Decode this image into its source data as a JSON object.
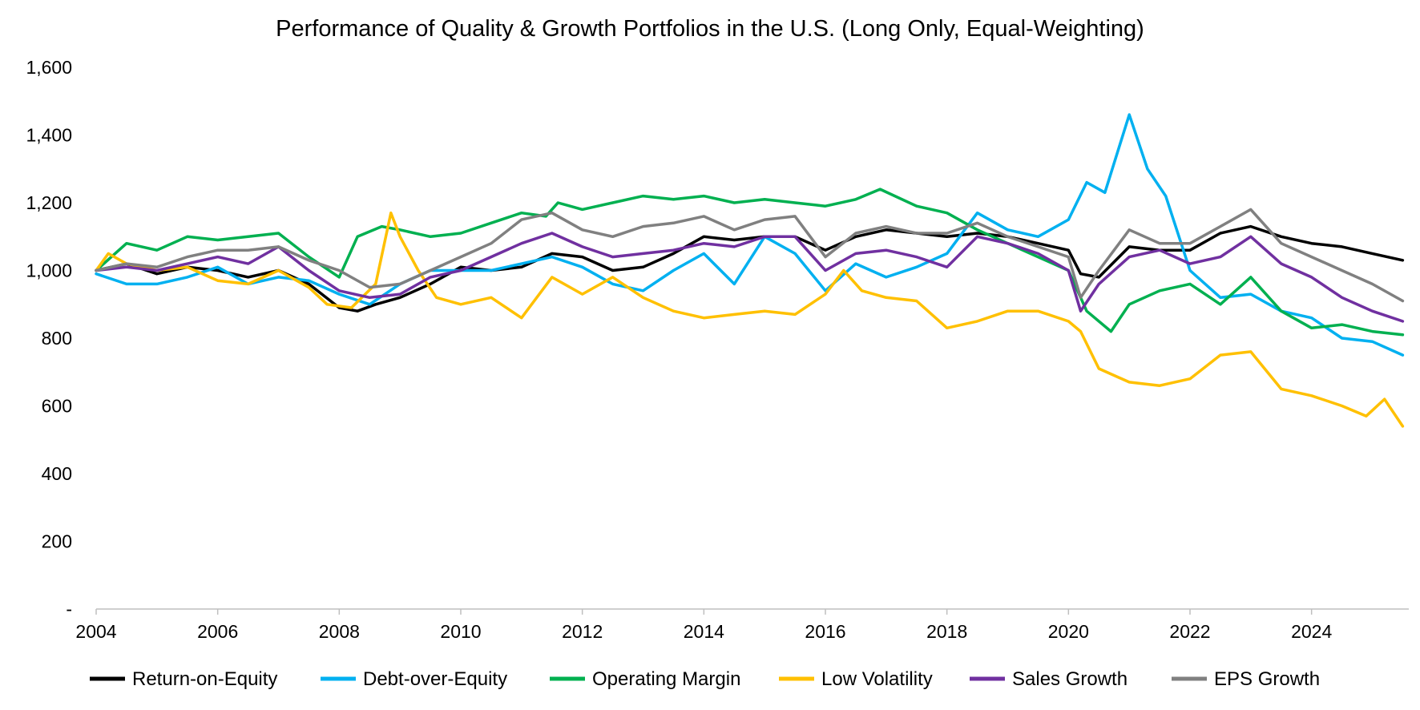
{
  "chart_data": {
    "type": "line",
    "title": "Performance of Quality & Growth Portfolios in the U.S. (Long Only, Equal-Weighting)",
    "xlabel": "",
    "ylabel": "",
    "xlim": [
      2004,
      2025.6
    ],
    "ylim": [
      0,
      1600
    ],
    "x_ticks": [
      2004,
      2006,
      2008,
      2010,
      2012,
      2014,
      2016,
      2018,
      2020,
      2022,
      2024
    ],
    "x_tick_labels": [
      "2004",
      "2006",
      "2008",
      "2010",
      "2012",
      "2014",
      "2016",
      "2018",
      "2020",
      "2022",
      "2024"
    ],
    "y_ticks": [
      0,
      200,
      400,
      600,
      800,
      1000,
      1200,
      1400,
      1600
    ],
    "y_tick_labels": [
      "-",
      "200",
      "400",
      "600",
      "800",
      "1,000",
      "1,200",
      "1,400",
      "1,600"
    ],
    "grid": false,
    "legend_position": "bottom",
    "series": [
      {
        "name": "Return-on-Equity",
        "color": "#000000",
        "x": [
          2004.0,
          2004.5,
          2005.0,
          2005.5,
          2006.0,
          2006.5,
          2007.0,
          2007.5,
          2008.0,
          2008.3,
          2008.6,
          2009.0,
          2009.5,
          2010.0,
          2010.5,
          2011.0,
          2011.5,
          2012.0,
          2012.5,
          2013.0,
          2013.5,
          2014.0,
          2014.5,
          2015.0,
          2015.5,
          2016.0,
          2016.5,
          2017.0,
          2017.5,
          2018.0,
          2018.5,
          2019.0,
          2019.5,
          2020.0,
          2020.2,
          2020.5,
          2021.0,
          2021.5,
          2022.0,
          2022.5,
          2023.0,
          2023.5,
          2024.0,
          2024.5,
          2025.0,
          2025.5
        ],
        "values": [
          1000,
          1020,
          990,
          1010,
          1000,
          980,
          1000,
          960,
          890,
          880,
          900,
          920,
          960,
          1010,
          1000,
          1010,
          1050,
          1040,
          1000,
          1010,
          1050,
          1100,
          1090,
          1100,
          1100,
          1060,
          1100,
          1120,
          1110,
          1100,
          1110,
          1100,
          1080,
          1060,
          990,
          980,
          1070,
          1060,
          1060,
          1110,
          1130,
          1100,
          1080,
          1070,
          1050,
          1030
        ]
      },
      {
        "name": "Debt-over-Equity",
        "color": "#00B0F0",
        "x": [
          2004.0,
          2004.5,
          2005.0,
          2005.5,
          2006.0,
          2006.5,
          2007.0,
          2007.5,
          2008.0,
          2008.5,
          2009.0,
          2009.5,
          2010.0,
          2010.5,
          2011.0,
          2011.5,
          2012.0,
          2012.5,
          2013.0,
          2013.5,
          2014.0,
          2014.5,
          2015.0,
          2015.5,
          2016.0,
          2016.5,
          2017.0,
          2017.5,
          2018.0,
          2018.5,
          2019.0,
          2019.5,
          2020.0,
          2020.3,
          2020.6,
          2021.0,
          2021.3,
          2021.6,
          2022.0,
          2022.5,
          2023.0,
          2023.5,
          2024.0,
          2024.5,
          2025.0,
          2025.5
        ],
        "values": [
          990,
          960,
          960,
          980,
          1010,
          960,
          980,
          970,
          930,
          900,
          960,
          1000,
          1000,
          1000,
          1020,
          1040,
          1010,
          960,
          940,
          1000,
          1050,
          960,
          1100,
          1050,
          940,
          1020,
          980,
          1010,
          1050,
          1170,
          1120,
          1100,
          1150,
          1260,
          1230,
          1460,
          1300,
          1220,
          1000,
          920,
          930,
          880,
          860,
          800,
          790,
          750
        ]
      },
      {
        "name": "Operating Margin",
        "color": "#00B050",
        "x": [
          2004.0,
          2004.5,
          2005.0,
          2005.5,
          2006.0,
          2006.5,
          2007.0,
          2007.5,
          2008.0,
          2008.3,
          2008.7,
          2009.0,
          2009.5,
          2010.0,
          2010.5,
          2011.0,
          2011.4,
          2011.6,
          2012.0,
          2012.5,
          2013.0,
          2013.5,
          2014.0,
          2014.5,
          2015.0,
          2015.5,
          2016.0,
          2016.5,
          2016.9,
          2017.5,
          2018.0,
          2018.5,
          2019.0,
          2019.5,
          2020.0,
          2020.3,
          2020.7,
          2021.0,
          2021.5,
          2022.0,
          2022.5,
          2023.0,
          2023.5,
          2024.0,
          2024.5,
          2025.0,
          2025.5
        ],
        "values": [
          1000,
          1080,
          1060,
          1100,
          1090,
          1100,
          1110,
          1040,
          980,
          1100,
          1130,
          1120,
          1100,
          1110,
          1140,
          1170,
          1160,
          1200,
          1180,
          1200,
          1220,
          1210,
          1220,
          1200,
          1210,
          1200,
          1190,
          1210,
          1240,
          1190,
          1170,
          1120,
          1080,
          1040,
          1000,
          880,
          820,
          900,
          940,
          960,
          900,
          980,
          880,
          830,
          840,
          820,
          810
        ]
      },
      {
        "name": "Low Volatility",
        "color": "#FFC000",
        "x": [
          2004.0,
          2004.2,
          2004.5,
          2005.0,
          2005.5,
          2006.0,
          2006.5,
          2007.0,
          2007.5,
          2007.8,
          2008.2,
          2008.6,
          2008.85,
          2009.0,
          2009.3,
          2009.6,
          2010.0,
          2010.5,
          2011.0,
          2011.5,
          2012.0,
          2012.5,
          2013.0,
          2013.5,
          2014.0,
          2014.5,
          2015.0,
          2015.5,
          2016.0,
          2016.3,
          2016.6,
          2017.0,
          2017.5,
          2018.0,
          2018.5,
          2019.0,
          2019.5,
          2020.0,
          2020.2,
          2020.5,
          2021.0,
          2021.5,
          2022.0,
          2022.5,
          2023.0,
          2023.5,
          2024.0,
          2024.5,
          2024.9,
          2025.2,
          2025.5
        ],
        "values": [
          1000,
          1050,
          1020,
          1000,
          1010,
          970,
          960,
          1000,
          950,
          900,
          890,
          960,
          1170,
          1100,
          1000,
          920,
          900,
          920,
          860,
          980,
          930,
          980,
          920,
          880,
          860,
          870,
          880,
          870,
          930,
          1000,
          940,
          920,
          910,
          830,
          850,
          880,
          880,
          850,
          820,
          710,
          670,
          660,
          680,
          750,
          760,
          650,
          630,
          600,
          570,
          620,
          540
        ]
      },
      {
        "name": "Sales Growth",
        "color": "#7030A0",
        "x": [
          2004.0,
          2004.5,
          2005.0,
          2005.5,
          2006.0,
          2006.5,
          2007.0,
          2007.5,
          2008.0,
          2008.5,
          2009.0,
          2009.5,
          2010.0,
          2010.5,
          2011.0,
          2011.5,
          2012.0,
          2012.5,
          2013.0,
          2013.5,
          2014.0,
          2014.5,
          2015.0,
          2015.5,
          2016.0,
          2016.5,
          2017.0,
          2017.5,
          2018.0,
          2018.5,
          2019.0,
          2019.5,
          2020.0,
          2020.2,
          2020.5,
          2021.0,
          2021.5,
          2022.0,
          2022.5,
          2023.0,
          2023.5,
          2024.0,
          2024.5,
          2025.0,
          2025.5
        ],
        "values": [
          1000,
          1010,
          1000,
          1020,
          1040,
          1020,
          1070,
          1000,
          940,
          920,
          930,
          980,
          1000,
          1040,
          1080,
          1110,
          1070,
          1040,
          1050,
          1060,
          1080,
          1070,
          1100,
          1100,
          1000,
          1050,
          1060,
          1040,
          1010,
          1100,
          1080,
          1050,
          1000,
          880,
          960,
          1040,
          1060,
          1020,
          1040,
          1100,
          1020,
          980,
          920,
          880,
          850
        ]
      },
      {
        "name": "EPS Growth",
        "color": "#808080",
        "x": [
          2004.0,
          2004.5,
          2005.0,
          2005.5,
          2006.0,
          2006.5,
          2007.0,
          2007.5,
          2008.0,
          2008.5,
          2009.0,
          2009.5,
          2010.0,
          2010.5,
          2011.0,
          2011.5,
          2012.0,
          2012.5,
          2013.0,
          2013.5,
          2014.0,
          2014.5,
          2015.0,
          2015.5,
          2016.0,
          2016.5,
          2017.0,
          2017.5,
          2018.0,
          2018.5,
          2019.0,
          2019.5,
          2020.0,
          2020.2,
          2020.5,
          2021.0,
          2021.5,
          2022.0,
          2022.5,
          2023.0,
          2023.5,
          2024.0,
          2024.5,
          2025.0,
          2025.5
        ],
        "values": [
          1000,
          1020,
          1010,
          1040,
          1060,
          1060,
          1070,
          1030,
          1000,
          950,
          960,
          1000,
          1040,
          1080,
          1150,
          1170,
          1120,
          1100,
          1130,
          1140,
          1160,
          1120,
          1150,
          1160,
          1040,
          1110,
          1130,
          1110,
          1110,
          1140,
          1100,
          1070,
          1040,
          920,
          1000,
          1120,
          1080,
          1080,
          1130,
          1180,
          1080,
          1040,
          1000,
          960,
          910
        ]
      }
    ]
  }
}
